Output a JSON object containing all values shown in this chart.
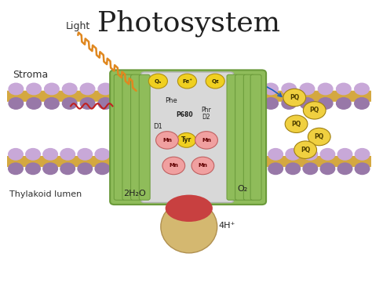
{
  "title": "Photosystem",
  "title_fontsize": 26,
  "title_font": "serif",
  "stroma_label": "Stroma",
  "lumen_label": "Thylakoid lumen",
  "light_label": "Light",
  "colors": {
    "bg_color": "#ffffff",
    "membrane_outer": "#8fbc5a",
    "membrane_inner": "#6a9a3a",
    "membrane_bead_top": "#c8a8d8",
    "membrane_bead_bot": "#9878a8",
    "membrane_lipid": "#d4a840",
    "protein_gray": "#b0b0b0",
    "protein_light": "#d8d8d8",
    "yellow_circle": "#f0d020",
    "pink_circle": "#f0a0a0",
    "pq_yellow": "#f0d040",
    "arrow_blue": "#2060c0",
    "arrow_red": "#c02020",
    "light_orange": "#e08820",
    "lumen_bottom_red": "#c84040",
    "lumen_bottom_tan": "#d4b870",
    "text_dark": "#202020"
  }
}
